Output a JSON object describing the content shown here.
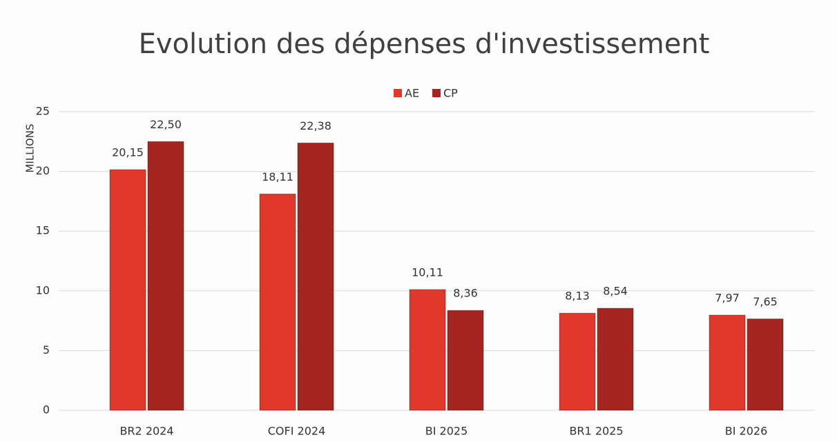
{
  "chart_data": {
    "type": "bar",
    "title": "Evolution des dépenses d'investissement",
    "ylabel": "MILLIONS",
    "categories": [
      "BR2 2024",
      "COFI 2024",
      "BI 2025",
      "BR1 2025",
      "BI 2026"
    ],
    "series": [
      {
        "name": "AE",
        "color": "#e0392c",
        "values": [
          20.15,
          18.11,
          10.11,
          8.13,
          7.97
        ],
        "value_labels": [
          "20,15",
          "18,11",
          "10,11",
          "8,13",
          "7,97"
        ]
      },
      {
        "name": "CP",
        "color": "#a52620",
        "values": [
          22.5,
          22.38,
          8.36,
          8.54,
          7.65
        ],
        "value_labels": [
          "22,50",
          "22,38",
          "8,36",
          "8,54",
          "7,65"
        ]
      }
    ],
    "ylim": [
      0,
      25
    ],
    "yticks": [
      0,
      5,
      10,
      15,
      20,
      25
    ],
    "grid": true,
    "legend": "top"
  }
}
